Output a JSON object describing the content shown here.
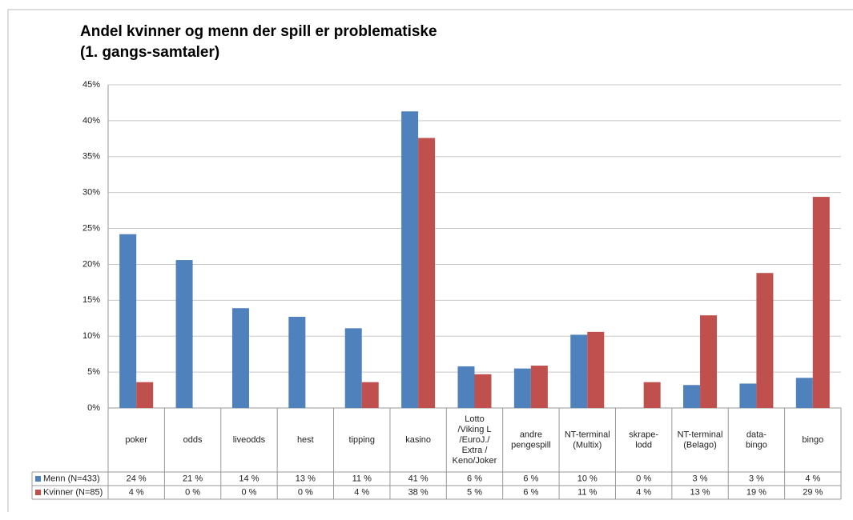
{
  "chart_data": {
    "type": "bar",
    "title": "Andel kvinner og menn der spill er problematiske",
    "subtitle": "(1. gangs-samtaler)",
    "categories": [
      "poker",
      "odds",
      "liveodds",
      "hest",
      "tipping",
      "kasino",
      "Lotto\n/Viking L\n/EuroJ./\nExtra /\nKeno/Joker",
      "andre\npengespill",
      "NT-terminal\n(Multix)",
      "skrape-\nlodd",
      "NT-terminal\n(Belago)",
      "data-\nbingo",
      "bingo"
    ],
    "series": [
      {
        "name": "Menn (N=433)",
        "color": "#4f81bd",
        "values": [
          24.2,
          20.6,
          13.9,
          12.7,
          11.1,
          41.3,
          5.8,
          5.5,
          10.2,
          0,
          3.2,
          3.4,
          4.2
        ],
        "value_labels": [
          "24 %",
          "21 %",
          "14 %",
          "13 %",
          "11 %",
          "41 %",
          "6 %",
          "6 %",
          "10 %",
          "0 %",
          "3 %",
          "3 %",
          "4 %"
        ]
      },
      {
        "name": "Kvinner (N=85)",
        "color": "#c0504d",
        "values": [
          3.6,
          0,
          0,
          0,
          3.6,
          37.6,
          4.7,
          5.9,
          10.6,
          3.6,
          12.9,
          18.8,
          29.4
        ],
        "value_labels": [
          "4 %",
          "0 %",
          "0 %",
          "0 %",
          "4 %",
          "38 %",
          "5 %",
          "6 %",
          "11 %",
          "4 %",
          "13 %",
          "19 %",
          "29 %"
        ]
      }
    ],
    "ylim": [
      0,
      45
    ],
    "yticks": [
      {
        "value": 0,
        "label": "0%"
      },
      {
        "value": 5,
        "label": "5%"
      },
      {
        "value": 10,
        "label": "10%"
      },
      {
        "value": 15,
        "label": "15%"
      },
      {
        "value": 20,
        "label": "20%"
      },
      {
        "value": 25,
        "label": "25%"
      },
      {
        "value": 30,
        "label": "30%"
      },
      {
        "value": 35,
        "label": "35%"
      },
      {
        "value": 40,
        "label": "40%"
      },
      {
        "value": 45,
        "label": "45%"
      }
    ],
    "grid": true
  }
}
